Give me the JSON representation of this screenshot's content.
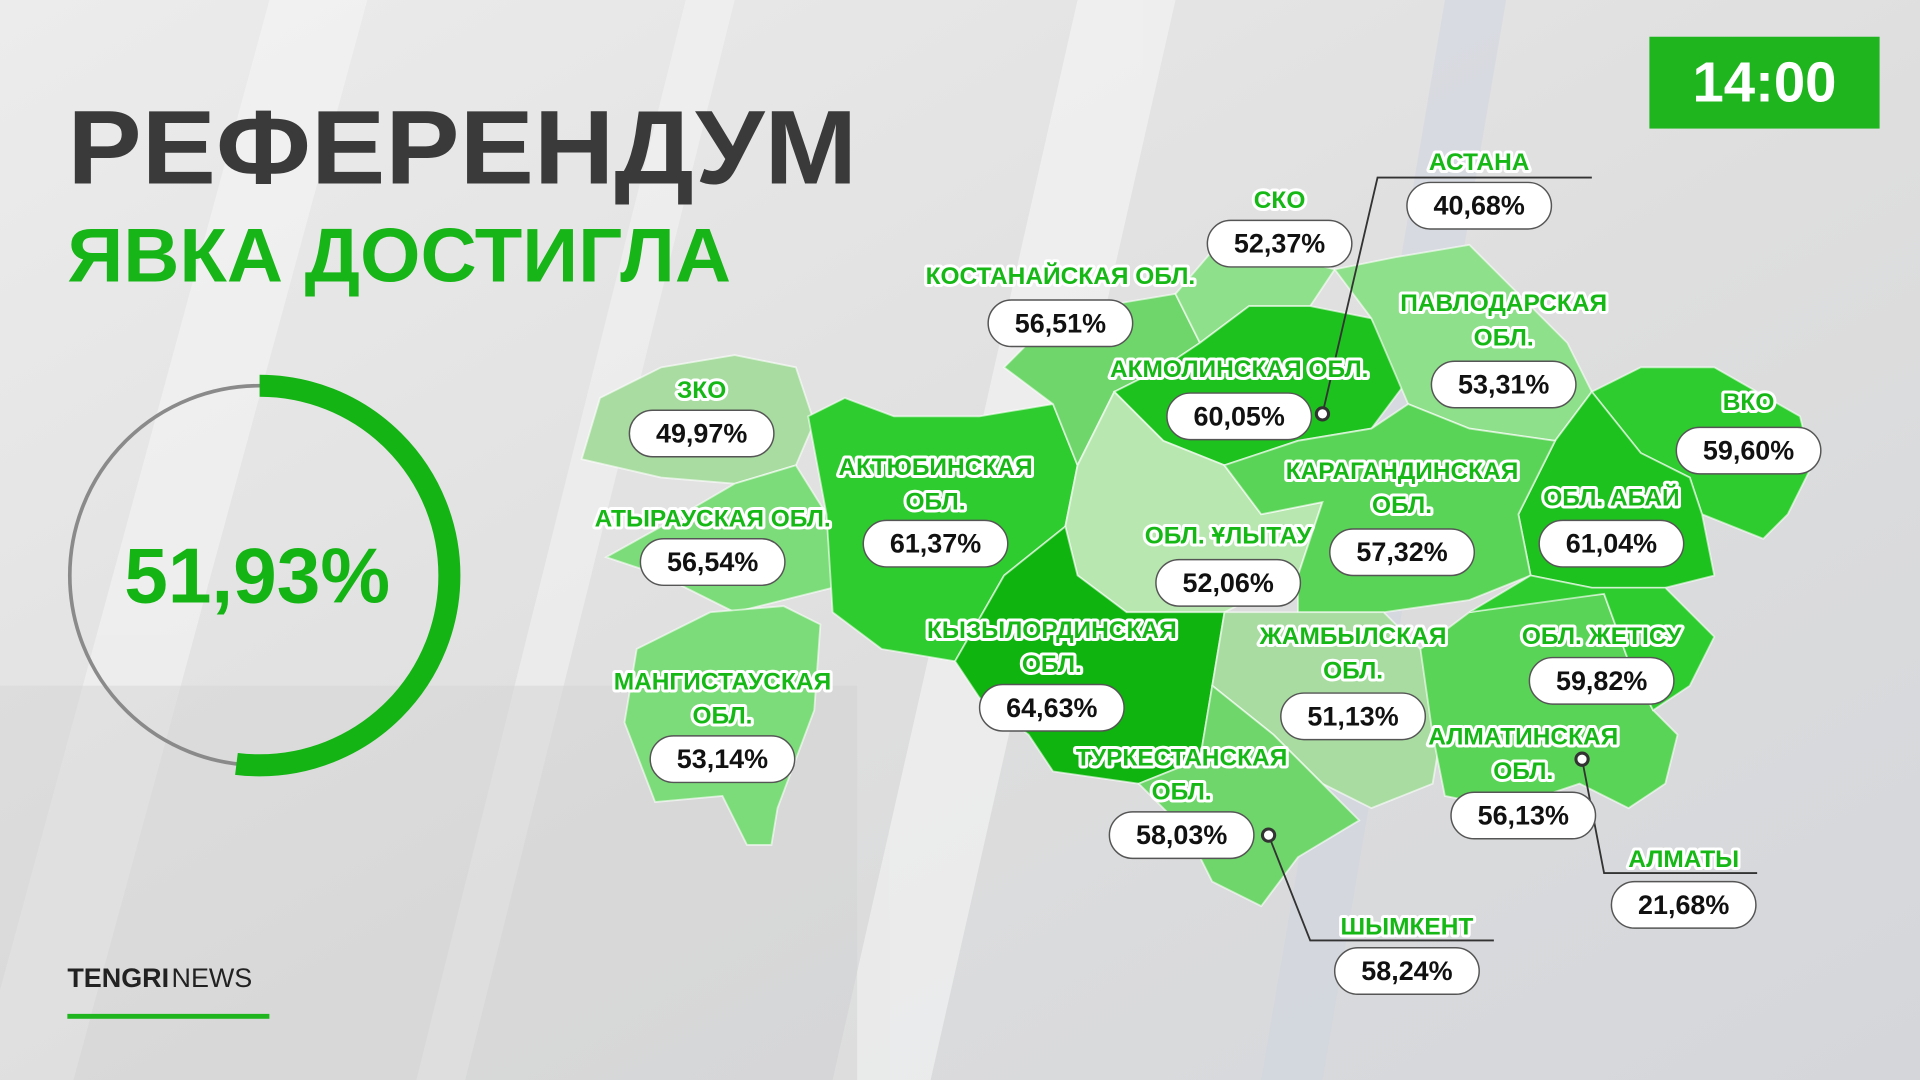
{
  "header": {
    "title": "РЕФЕРЕНДУМ",
    "subtitle": "ЯВКА ДОСТИГЛА",
    "time": "14:00"
  },
  "turnout": {
    "value": 51.93,
    "label": "51,93%"
  },
  "brand": {
    "bold": "TENGRI",
    "light": "NEWS"
  },
  "regions": [
    {
      "name": [
        "СКО"
      ],
      "value": "52,37%"
    },
    {
      "name": [
        "КОСТАНАЙСКАЯ ОБЛ."
      ],
      "value": "56,51%"
    },
    {
      "name": [
        "АСТАНА"
      ],
      "value": "40,68%"
    },
    {
      "name": [
        "ЗКО"
      ],
      "value": "49,97%"
    },
    {
      "name": [
        "АКМОЛИНСКАЯ ОБЛ."
      ],
      "value": "60,05%"
    },
    {
      "name": [
        "ПАВЛОДАРСКАЯ",
        "ОБЛ."
      ],
      "value": "53,31%"
    },
    {
      "name": [
        "ВКО"
      ],
      "value": "59,60%"
    },
    {
      "name": [
        "АКТЮБИНСКАЯ",
        "ОБЛ."
      ],
      "value": "61,37%"
    },
    {
      "name": [
        "АТЫРАУСКАЯ ОБЛ."
      ],
      "value": "56,54%"
    },
    {
      "name": [
        "ОБЛ. ҰЛЫТАУ"
      ],
      "value": "52,06%"
    },
    {
      "name": [
        "КАРАГАНДИНСКАЯ",
        "ОБЛ."
      ],
      "value": "57,32%"
    },
    {
      "name": [
        "ОБЛ. АБАЙ"
      ],
      "value": "61,04%"
    },
    {
      "name": [
        "КЫЗЫЛОРДИНСКАЯ",
        "ОБЛ."
      ],
      "value": "64,63%"
    },
    {
      "name": [
        "ЖАМБЫЛСКАЯ",
        "ОБЛ."
      ],
      "value": "51,13%"
    },
    {
      "name": [
        "ОБЛ. ЖЕТІСУ"
      ],
      "value": "59,82%"
    },
    {
      "name": [
        "МАНГИСТАУСКАЯ",
        "ОБЛ."
      ],
      "value": "53,14%"
    },
    {
      "name": [
        "ТУРКЕСТАНСКАЯ",
        "ОБЛ."
      ],
      "value": "58,03%"
    },
    {
      "name": [
        "АЛМАТИНСКАЯ",
        "ОБЛ."
      ],
      "value": "56,13%"
    },
    {
      "name": [
        "АЛМАТЫ"
      ],
      "value": "21,68%"
    },
    {
      "name": [
        "ШЫМКЕНТ"
      ],
      "value": "58,24%"
    }
  ]
}
